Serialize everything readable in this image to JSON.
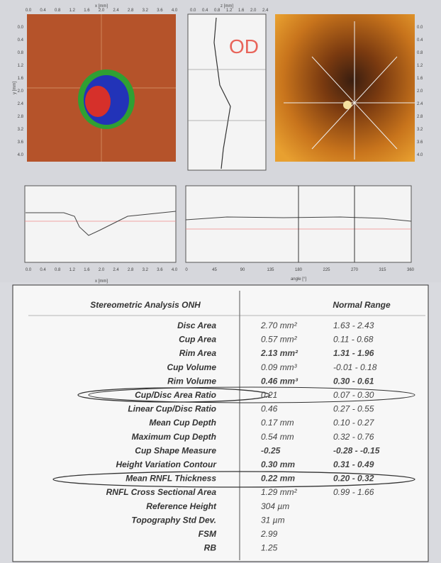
{
  "header": {
    "eye": "OD"
  },
  "plots": {
    "mm_ticks": [
      "0.0",
      "0.4",
      "0.8",
      "1.2",
      "1.6",
      "2.0",
      "2.4",
      "2.8",
      "3.2",
      "3.6",
      "4.0"
    ],
    "angle_ticks": [
      "0",
      "45",
      "90",
      "135",
      "180",
      "225",
      "270",
      "315",
      "360"
    ],
    "x_label": "x [mm]",
    "y_label": "y [mm]",
    "z_label": "z [mm]",
    "angle_label": "angle [°]"
  },
  "table": {
    "title": "Stereometric Analysis ONH",
    "range_header": "Normal Range",
    "rows": [
      {
        "label": "Disc Area",
        "value": "2.70 mm²",
        "range": "1.63 - 2.43"
      },
      {
        "label": "Cup Area",
        "value": "0.57 mm²",
        "range": "0.11 - 0.68"
      },
      {
        "label": "Rim Area",
        "value": "2.13 mm²",
        "range": "1.31 - 1.96",
        "bold": true
      },
      {
        "label": "Cup Volume",
        "value": "0.09 mm³",
        "range": "-0.01 - 0.18"
      },
      {
        "label": "Rim Volume",
        "value": "0.46 mm³",
        "range": "0.30 - 0.61",
        "bold": true
      },
      {
        "label": "Cup/Disc Area Ratio",
        "value": "0.21",
        "range": "0.07 - 0.30"
      },
      {
        "label": "Linear Cup/Disc Ratio",
        "value": "0.46",
        "range": "0.27 - 0.55"
      },
      {
        "label": "Mean Cup Depth",
        "value": "0.17 mm",
        "range": "0.10 - 0.27"
      },
      {
        "label": "Maximum Cup Depth",
        "value": "0.54 mm",
        "range": "0.32 - 0.76"
      },
      {
        "label": "Cup Shape Measure",
        "value": "-0.25",
        "range": "-0.28 - -0.15",
        "bold": true
      },
      {
        "label": "Height Variation Contour",
        "value": "0.30 mm",
        "range": "0.31 - 0.49",
        "bold": true
      },
      {
        "label": "Mean RNFL Thickness",
        "value": "0.22 mm",
        "range": "0.20 - 0.32",
        "bold": true
      },
      {
        "label": "RNFL Cross Sectional Area",
        "value": "1.29 mm²",
        "range": "0.99 - 1.66"
      },
      {
        "label": "Reference Height",
        "value": "304 µm"
      },
      {
        "label": "Topography Std Dev.",
        "value": "31 µm"
      },
      {
        "label": "FSM",
        "value": "2.99"
      },
      {
        "label": "RB",
        "value": "1.25"
      }
    ]
  }
}
